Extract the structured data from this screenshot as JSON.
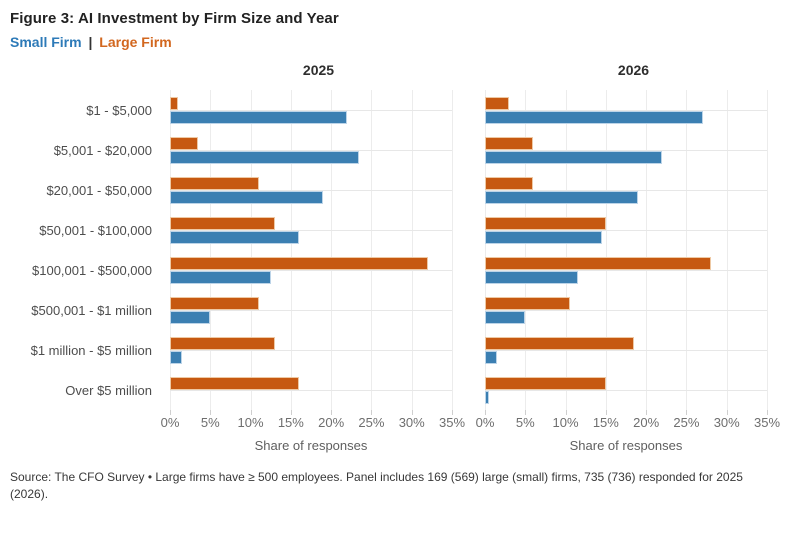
{
  "figure": {
    "title": "Figure 3: AI Investment by Firm Size and Year",
    "source_note": "Source: The CFO Survey • Large firms have ≥ 500 employees. Panel includes 169 (569) large (small) firms, 735 (736) responded for 2025 (2026)."
  },
  "legend": {
    "small_firm": "Small Firm",
    "separator": "|",
    "large_firm": "Large Firm"
  },
  "colors": {
    "small_firm": "#3b7fb2",
    "large_firm": "#c65911",
    "legend_small_text": "#2d7ab8",
    "legend_large_text": "#d2671f",
    "gridline": "#ececec",
    "tick_text": "#6e6e6e",
    "category_text": "#4d4d4d",
    "title_text": "#222222",
    "footer_text": "#383838"
  },
  "chart_data": {
    "type": "bar",
    "orientation": "horizontal",
    "unit": "%",
    "categories": [
      "$1 - $5,000",
      "$5,001 - $20,000",
      "$20,001 - $50,000",
      "$50,001 - $100,000",
      "$100,001 - $500,000",
      "$500,001 - $1 million",
      "$1 million - $5 million",
      "Over $5 million"
    ],
    "xlim": [
      0,
      35
    ],
    "xticks": [
      0,
      5,
      10,
      15,
      20,
      25,
      30,
      35
    ],
    "tick_suffix": "%",
    "grid": true,
    "legend_position": "top-left",
    "panels": [
      {
        "title": "2025",
        "xlabel": "Share of responses",
        "series": [
          {
            "name": "Large Firm",
            "color": "#c65911",
            "values": [
              1,
              3.5,
              11,
              13,
              32,
              11,
              13,
              16
            ]
          },
          {
            "name": "Small Firm",
            "color": "#3b7fb2",
            "values": [
              22,
              23.5,
              19,
              16,
              12.5,
              5,
              1.5,
              0
            ]
          }
        ]
      },
      {
        "title": "2026",
        "xlabel": "Share of responses",
        "series": [
          {
            "name": "Large Firm",
            "color": "#c65911",
            "values": [
              3,
              6,
              6,
              15,
              28,
              10.5,
              18.5,
              15
            ]
          },
          {
            "name": "Small Firm",
            "color": "#3b7fb2",
            "values": [
              27,
              22,
              19,
              14.5,
              11.5,
              5,
              1.5,
              0.5
            ]
          }
        ]
      }
    ]
  }
}
